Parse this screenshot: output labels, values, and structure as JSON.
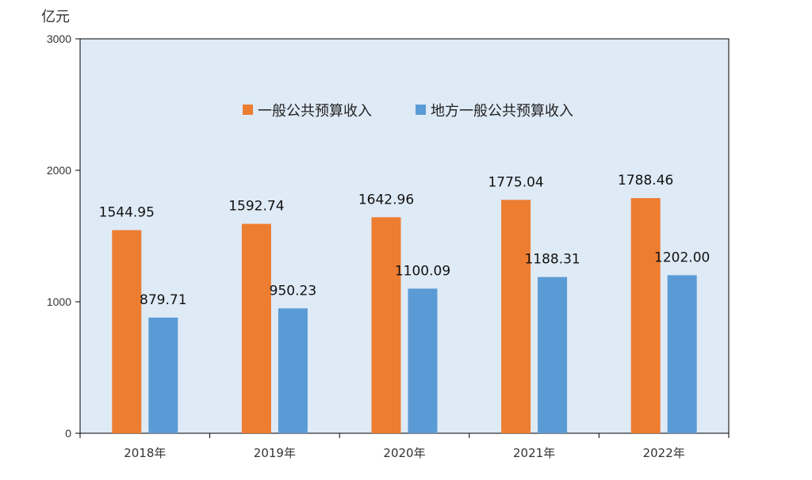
{
  "chart_data": {
    "type": "bar",
    "unit_label": "亿元",
    "categories": [
      "2018年",
      "2019年",
      "2020年",
      "2021年",
      "2022年"
    ],
    "series": [
      {
        "name": "一般公共预算收入",
        "values": [
          1544.95,
          1592.74,
          1642.96,
          1775.04,
          1788.46
        ],
        "labels": [
          "1544.95",
          "1592.74",
          "1642.96",
          "1775.04",
          "1788.46"
        ],
        "color": "#ED7D31"
      },
      {
        "name": "地方一般公共预算收入",
        "values": [
          879.71,
          950.23,
          1100.09,
          1188.31,
          1202.0
        ],
        "labels": [
          "879.71",
          "950.23",
          "1100.09",
          "1188.31",
          "1202.00"
        ],
        "color": "#5B9BD5"
      }
    ],
    "ylim": [
      0,
      3000
    ],
    "yticks": [
      "0",
      "1000",
      "2000",
      "3000"
    ],
    "plot_background": "#DEEAF6",
    "grid": false,
    "legend_position": "top-center"
  }
}
